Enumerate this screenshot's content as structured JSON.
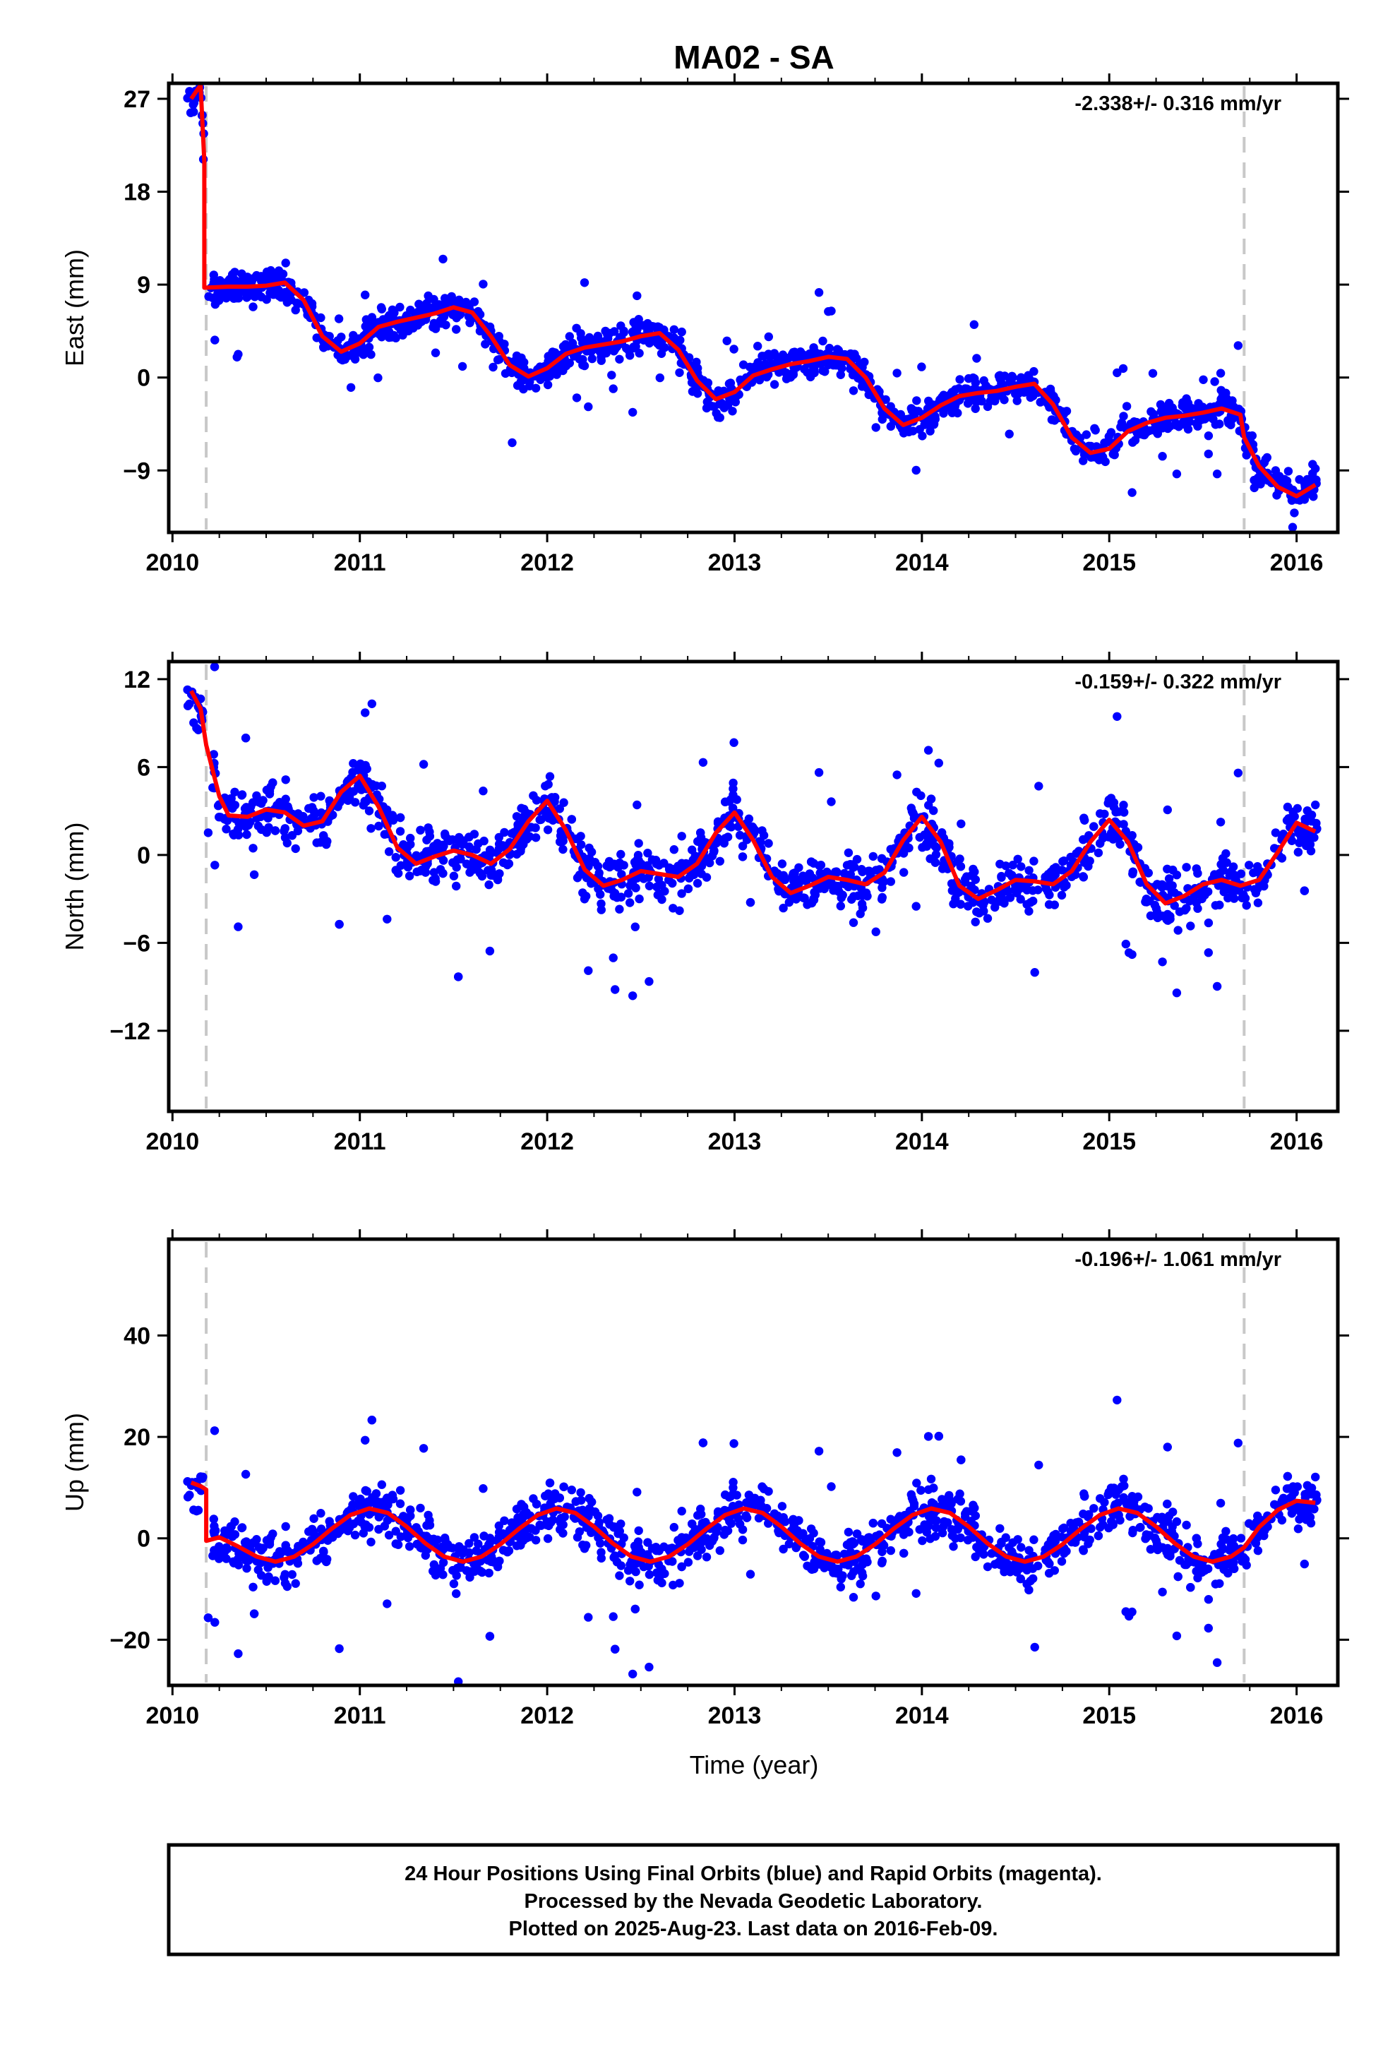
{
  "title": "MA02 - SA",
  "xlabel": "Time (year)",
  "footer": {
    "line1": "24 Hour Positions Using Final Orbits (blue) and Rapid Orbits (magenta).",
    "line2": "Processed by the Nevada Geodetic Laboratory.",
    "line3": "Plotted on 2025-Aug-23. Last data on 2016-Feb-09."
  },
  "colors": {
    "final_orbits": "#0000ff",
    "model": "#ff0000",
    "event_line": "#c8c8c8",
    "frame": "#000000"
  },
  "chart_data": [
    {
      "type": "scatter",
      "component": "east",
      "ylabel": "East (mm)",
      "rate_label": "-2.338+/- 0.316 mm/yr",
      "xlim": [
        2009.98,
        2016.22
      ],
      "ylim": [
        -15,
        28.5
      ],
      "xticks": [
        2010,
        2011,
        2012,
        2013,
        2014,
        2015,
        2016
      ],
      "yticks": [
        -9,
        0,
        9,
        18,
        27
      ],
      "ytick_labels": [
        "−9",
        "0",
        "9",
        "18",
        "27"
      ],
      "event_lines": [
        2010.18,
        2015.72
      ],
      "model": {
        "name": "fit",
        "x": [
          2010.1,
          2010.13,
          2010.15,
          2010.17,
          2010.17,
          2010.3,
          2010.4,
          2010.5,
          2010.6,
          2010.7,
          2010.8,
          2010.9,
          2011.0,
          2011.1,
          2011.2,
          2011.3,
          2011.4,
          2011.5,
          2011.6,
          2011.7,
          2011.8,
          2011.9,
          2012.0,
          2012.1,
          2012.2,
          2012.3,
          2012.4,
          2012.5,
          2012.6,
          2012.7,
          2012.8,
          2012.9,
          2013.0,
          2013.1,
          2013.2,
          2013.3,
          2013.4,
          2013.5,
          2013.6,
          2013.7,
          2013.8,
          2013.9,
          2014.0,
          2014.1,
          2014.2,
          2014.3,
          2014.4,
          2014.5,
          2014.6,
          2014.7,
          2014.8,
          2014.9,
          2015.0,
          2015.1,
          2015.2,
          2015.3,
          2015.4,
          2015.5,
          2015.6,
          2015.7,
          2015.72,
          2015.8,
          2015.9,
          2016.0,
          2016.1
        ],
        "y": [
          27.0,
          27.8,
          28.3,
          21.0,
          8.7,
          8.8,
          8.8,
          8.9,
          9.2,
          7.5,
          4.0,
          2.5,
          3.3,
          4.9,
          5.4,
          5.8,
          6.2,
          6.8,
          6.3,
          4.0,
          1.2,
          0.1,
          0.9,
          2.3,
          2.9,
          3.2,
          3.5,
          4.0,
          4.3,
          2.7,
          -0.3,
          -2.1,
          -1.4,
          0.2,
          0.8,
          1.3,
          1.6,
          2.0,
          1.8,
          0.0,
          -3.0,
          -4.6,
          -3.9,
          -2.7,
          -1.8,
          -1.5,
          -1.3,
          -0.9,
          -0.6,
          -2.6,
          -5.8,
          -7.3,
          -6.9,
          -5.2,
          -4.4,
          -3.9,
          -3.7,
          -3.4,
          -3.0,
          -3.6,
          -5.8,
          -8.6,
          -10.6,
          -11.5,
          -10.4
        ]
      }
    },
    {
      "type": "scatter",
      "component": "north",
      "ylabel": "North (mm)",
      "rate_label": "-0.159+/- 0.322 mm/yr",
      "xlim": [
        2009.98,
        2016.22
      ],
      "ylim": [
        -17.5,
        13.2
      ],
      "xticks": [
        2010,
        2011,
        2012,
        2013,
        2014,
        2015,
        2016
      ],
      "yticks": [
        -12,
        -6,
        0,
        6,
        12
      ],
      "ytick_labels": [
        "−12",
        "−6",
        "0",
        "6",
        "12"
      ],
      "event_lines": [
        2010.18,
        2015.72
      ],
      "model": {
        "name": "fit",
        "x": [
          2010.1,
          2010.15,
          2010.18,
          2010.25,
          2010.3,
          2010.4,
          2010.5,
          2010.6,
          2010.7,
          2010.8,
          2010.9,
          2011.0,
          2011.1,
          2011.2,
          2011.3,
          2011.4,
          2011.5,
          2011.6,
          2011.7,
          2011.8,
          2011.9,
          2012.0,
          2012.1,
          2012.2,
          2012.3,
          2012.4,
          2012.5,
          2012.6,
          2012.7,
          2012.8,
          2012.9,
          2013.0,
          2013.1,
          2013.2,
          2013.3,
          2013.4,
          2013.5,
          2013.6,
          2013.7,
          2013.8,
          2013.9,
          2014.0,
          2014.1,
          2014.2,
          2014.3,
          2014.4,
          2014.5,
          2014.6,
          2014.7,
          2014.8,
          2014.9,
          2015.0,
          2015.1,
          2015.2,
          2015.3,
          2015.4,
          2015.5,
          2015.6,
          2015.7,
          2015.8,
          2015.9,
          2016.0,
          2016.1
        ],
        "y": [
          11.2,
          10.0,
          7.5,
          4.0,
          2.7,
          2.6,
          3.1,
          2.9,
          2.0,
          2.3,
          4.3,
          5.4,
          3.3,
          0.5,
          -0.6,
          -0.1,
          0.3,
          0.0,
          -0.6,
          0.4,
          2.3,
          3.7,
          1.7,
          -1.0,
          -2.1,
          -1.7,
          -1.1,
          -1.3,
          -1.5,
          -0.6,
          1.5,
          2.9,
          1.0,
          -1.5,
          -2.6,
          -2.1,
          -1.5,
          -1.7,
          -2.0,
          -1.2,
          1.0,
          2.6,
          0.9,
          -2.1,
          -3.0,
          -2.4,
          -1.7,
          -1.8,
          -2.0,
          -1.1,
          0.9,
          2.4,
          0.9,
          -2.0,
          -3.3,
          -2.8,
          -2.0,
          -1.7,
          -2.1,
          -1.7,
          0.2,
          2.2,
          1.6
        ]
      }
    },
    {
      "type": "scatter",
      "component": "up",
      "ylabel": "Up (mm)",
      "rate_label": "-0.196+/- 1.061 mm/yr",
      "xlim": [
        2009.98,
        2016.22
      ],
      "ylim": [
        -29,
        59
      ],
      "xticks": [
        2010,
        2011,
        2012,
        2013,
        2014,
        2015,
        2016
      ],
      "yticks": [
        -20,
        0,
        20,
        40
      ],
      "ytick_labels": [
        "−20",
        "0",
        "20",
        "40"
      ],
      "event_lines": [
        2010.18,
        2015.72
      ],
      "model": {
        "name": "fit",
        "x": [
          2010.1,
          2010.15,
          2010.18,
          2010.18,
          2010.25,
          2010.35,
          2010.45,
          2010.55,
          2010.65,
          2010.75,
          2010.85,
          2010.95,
          2011.05,
          2011.15,
          2011.25,
          2011.35,
          2011.45,
          2011.55,
          2011.65,
          2011.75,
          2011.85,
          2011.95,
          2012.05,
          2012.15,
          2012.25,
          2012.35,
          2012.45,
          2012.55,
          2012.65,
          2012.75,
          2012.85,
          2012.95,
          2013.05,
          2013.15,
          2013.25,
          2013.35,
          2013.45,
          2013.55,
          2013.65,
          2013.75,
          2013.85,
          2013.95,
          2014.05,
          2014.15,
          2014.25,
          2014.35,
          2014.45,
          2014.55,
          2014.65,
          2014.75,
          2014.85,
          2014.95,
          2015.05,
          2015.15,
          2015.25,
          2015.35,
          2015.45,
          2015.55,
          2015.65,
          2015.72,
          2015.8,
          2015.9,
          2016.0,
          2016.1
        ],
        "y": [
          11.0,
          10.3,
          9.6,
          -0.5,
          0.2,
          -1.6,
          -3.6,
          -4.6,
          -3.6,
          -1.2,
          1.9,
          4.6,
          5.9,
          5.0,
          2.3,
          -1.0,
          -3.6,
          -4.6,
          -3.6,
          -1.2,
          1.9,
          4.6,
          5.9,
          5.0,
          2.3,
          -1.0,
          -3.6,
          -4.6,
          -3.6,
          -1.2,
          1.9,
          4.6,
          5.9,
          5.0,
          2.3,
          -1.0,
          -3.6,
          -4.6,
          -3.6,
          -1.2,
          1.9,
          4.6,
          5.9,
          5.0,
          2.3,
          -1.0,
          -3.6,
          -4.6,
          -3.6,
          -1.2,
          1.9,
          4.6,
          5.9,
          5.0,
          2.3,
          -1.0,
          -3.6,
          -4.6,
          -3.6,
          -1.8,
          2.2,
          5.6,
          7.4,
          7.0
        ]
      }
    }
  ]
}
